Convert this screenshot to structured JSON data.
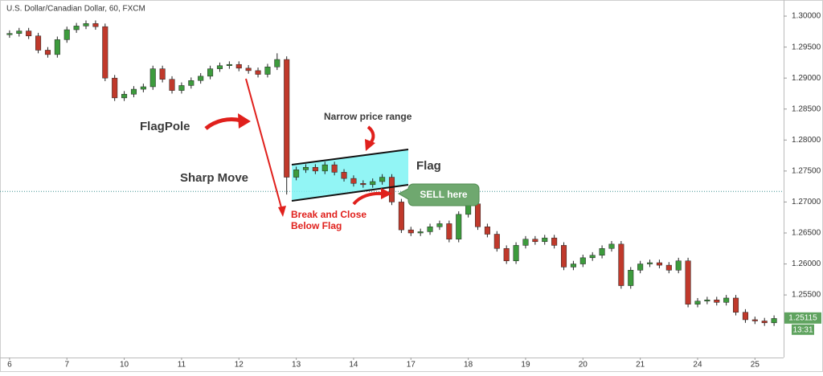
{
  "chart_data": {
    "type": "candlestick",
    "title": "U.S. Dollar/Canadian Dollar, 60, FXCM",
    "up_color": "#3d9b3d",
    "down_color": "#c0392b",
    "wick_color": "#222222",
    "xlim": [
      -1,
      81
    ],
    "xticks": [
      {
        "value": 0,
        "label": "6"
      },
      {
        "value": 6,
        "label": "7"
      },
      {
        "value": 12,
        "label": "10"
      },
      {
        "value": 18,
        "label": "11"
      },
      {
        "value": 24,
        "label": "12"
      },
      {
        "value": 30,
        "label": "13"
      },
      {
        "value": 36,
        "label": "14"
      },
      {
        "value": 42,
        "label": "17"
      },
      {
        "value": 48,
        "label": "18"
      },
      {
        "value": 54,
        "label": "19"
      },
      {
        "value": 60,
        "label": "20"
      },
      {
        "value": 66,
        "label": "21"
      },
      {
        "value": 72,
        "label": "24"
      },
      {
        "value": 78,
        "label": "25"
      }
    ],
    "ylim": [
      1.2449,
      1.3026
    ],
    "yticks": [
      {
        "value": 1.3,
        "label": "1.30000"
      },
      {
        "value": 1.295,
        "label": "1.29500"
      },
      {
        "value": 1.29,
        "label": "1.29000"
      },
      {
        "value": 1.285,
        "label": "1.28500"
      },
      {
        "value": 1.28,
        "label": "1.28000"
      },
      {
        "value": 1.275,
        "label": "1.27500"
      },
      {
        "value": 1.27,
        "label": "1.27000"
      },
      {
        "value": 1.265,
        "label": "1.26500"
      },
      {
        "value": 1.26,
        "label": "1.26000"
      },
      {
        "value": 1.255,
        "label": "1.25500"
      }
    ],
    "grid": false,
    "horizontal_line": 1.2717,
    "last_price": 1.25115,
    "last_price_color": "#5fa35f",
    "last_time": "13:31",
    "open": [
      1.297,
      1.2972,
      1.2976,
      1.2968,
      1.2945,
      1.2938,
      1.2962,
      1.2978,
      1.2984,
      1.2988,
      1.2983,
      1.29,
      1.2868,
      1.2874,
      1.2882,
      1.2886,
      1.2915,
      1.2898,
      1.288,
      1.2888,
      1.2896,
      1.2903,
      1.2915,
      1.292,
      1.2922,
      1.2916,
      1.2912,
      1.2906,
      1.2918,
      1.293,
      1.274,
      1.2752,
      1.2756,
      1.275,
      1.276,
      1.2748,
      1.2738,
      1.273,
      1.2728,
      1.2733,
      1.274,
      1.27,
      1.2655,
      1.265,
      1.2652,
      1.266,
      1.2665,
      1.264,
      1.268,
      1.2697,
      1.266,
      1.2648,
      1.2625,
      1.2605,
      1.263,
      1.264,
      1.2636,
      1.2642,
      1.263,
      1.2595,
      1.26,
      1.261,
      1.2614,
      1.2625,
      1.2632,
      1.2565,
      1.259,
      1.26,
      1.2602,
      1.2598,
      1.259,
      1.2605,
      1.2535,
      1.254,
      1.2542,
      1.2538,
      1.2545,
      1.2522,
      1.251,
      1.2508,
      1.2505
    ],
    "high": [
      1.2977,
      1.2981,
      1.2981,
      1.2973,
      1.295,
      1.2967,
      1.2983,
      1.2989,
      1.2993,
      1.2993,
      1.2988,
      1.2905,
      1.2879,
      1.2887,
      1.2891,
      1.292,
      1.292,
      1.2903,
      1.2893,
      1.2901,
      1.2908,
      1.292,
      1.2925,
      1.2927,
      1.2927,
      1.2921,
      1.2917,
      1.2923,
      1.294,
      1.2935,
      1.2757,
      1.2761,
      1.2761,
      1.2765,
      1.2765,
      1.2753,
      1.2743,
      1.2735,
      1.2738,
      1.2745,
      1.2745,
      1.2705,
      1.266,
      1.2657,
      1.2665,
      1.267,
      1.267,
      1.2685,
      1.2702,
      1.2702,
      1.2665,
      1.2653,
      1.263,
      1.2635,
      1.2645,
      1.2645,
      1.2647,
      1.2647,
      1.2635,
      1.2605,
      1.2615,
      1.2619,
      1.263,
      1.2637,
      1.2637,
      1.2595,
      1.2605,
      1.2607,
      1.2607,
      1.2603,
      1.261,
      1.261,
      1.2545,
      1.2547,
      1.2547,
      1.255,
      1.255,
      1.2527,
      1.2515,
      1.2513,
      1.2517
    ],
    "low": [
      1.2965,
      1.2967,
      1.2963,
      1.294,
      1.2933,
      1.2933,
      1.2957,
      1.2973,
      1.2979,
      1.2978,
      1.2895,
      1.2863,
      1.2863,
      1.2869,
      1.2877,
      1.2881,
      1.2893,
      1.2875,
      1.2875,
      1.2883,
      1.2891,
      1.2898,
      1.291,
      1.2915,
      1.2911,
      1.2907,
      1.2901,
      1.2901,
      1.2913,
      1.2712,
      1.2735,
      1.2747,
      1.2745,
      1.2745,
      1.2743,
      1.2733,
      1.2725,
      1.2723,
      1.2723,
      1.2728,
      1.2695,
      1.265,
      1.2645,
      1.2645,
      1.2647,
      1.2655,
      1.2635,
      1.2635,
      1.2675,
      1.2655,
      1.2643,
      1.262,
      1.26,
      1.26,
      1.2625,
      1.2631,
      1.2631,
      1.2625,
      1.259,
      1.259,
      1.2595,
      1.2605,
      1.2609,
      1.262,
      1.256,
      1.256,
      1.2585,
      1.2595,
      1.2593,
      1.2585,
      1.2585,
      1.253,
      1.253,
      1.2535,
      1.2533,
      1.2533,
      1.2517,
      1.2505,
      1.2503,
      1.25,
      1.25
    ],
    "close": [
      1.2972,
      1.2976,
      1.2968,
      1.2945,
      1.2938,
      1.2962,
      1.2978,
      1.2984,
      1.2988,
      1.2983,
      1.29,
      1.2868,
      1.2874,
      1.2882,
      1.2886,
      1.2915,
      1.2898,
      1.288,
      1.2888,
      1.2896,
      1.2903,
      1.2915,
      1.292,
      1.2922,
      1.2916,
      1.2912,
      1.2906,
      1.2918,
      1.293,
      1.274,
      1.2752,
      1.2756,
      1.275,
      1.276,
      1.2748,
      1.2738,
      1.273,
      1.2728,
      1.2733,
      1.274,
      1.27,
      1.2655,
      1.265,
      1.2652,
      1.266,
      1.2665,
      1.264,
      1.268,
      1.2697,
      1.266,
      1.2648,
      1.2625,
      1.2605,
      1.263,
      1.264,
      1.2636,
      1.2642,
      1.263,
      1.2595,
      1.26,
      1.261,
      1.2614,
      1.2625,
      1.2632,
      1.2565,
      1.259,
      1.26,
      1.2602,
      1.2598,
      1.259,
      1.2605,
      1.2535,
      1.254,
      1.2542,
      1.2538,
      1.2545,
      1.2522,
      1.251,
      1.2508,
      1.2505,
      1.2512
    ],
    "annotations": [
      "FlagPole",
      "Sharp Move",
      "Narrow price range",
      "Flag",
      "Break and Close",
      "Below Flag",
      "SELL here"
    ]
  }
}
